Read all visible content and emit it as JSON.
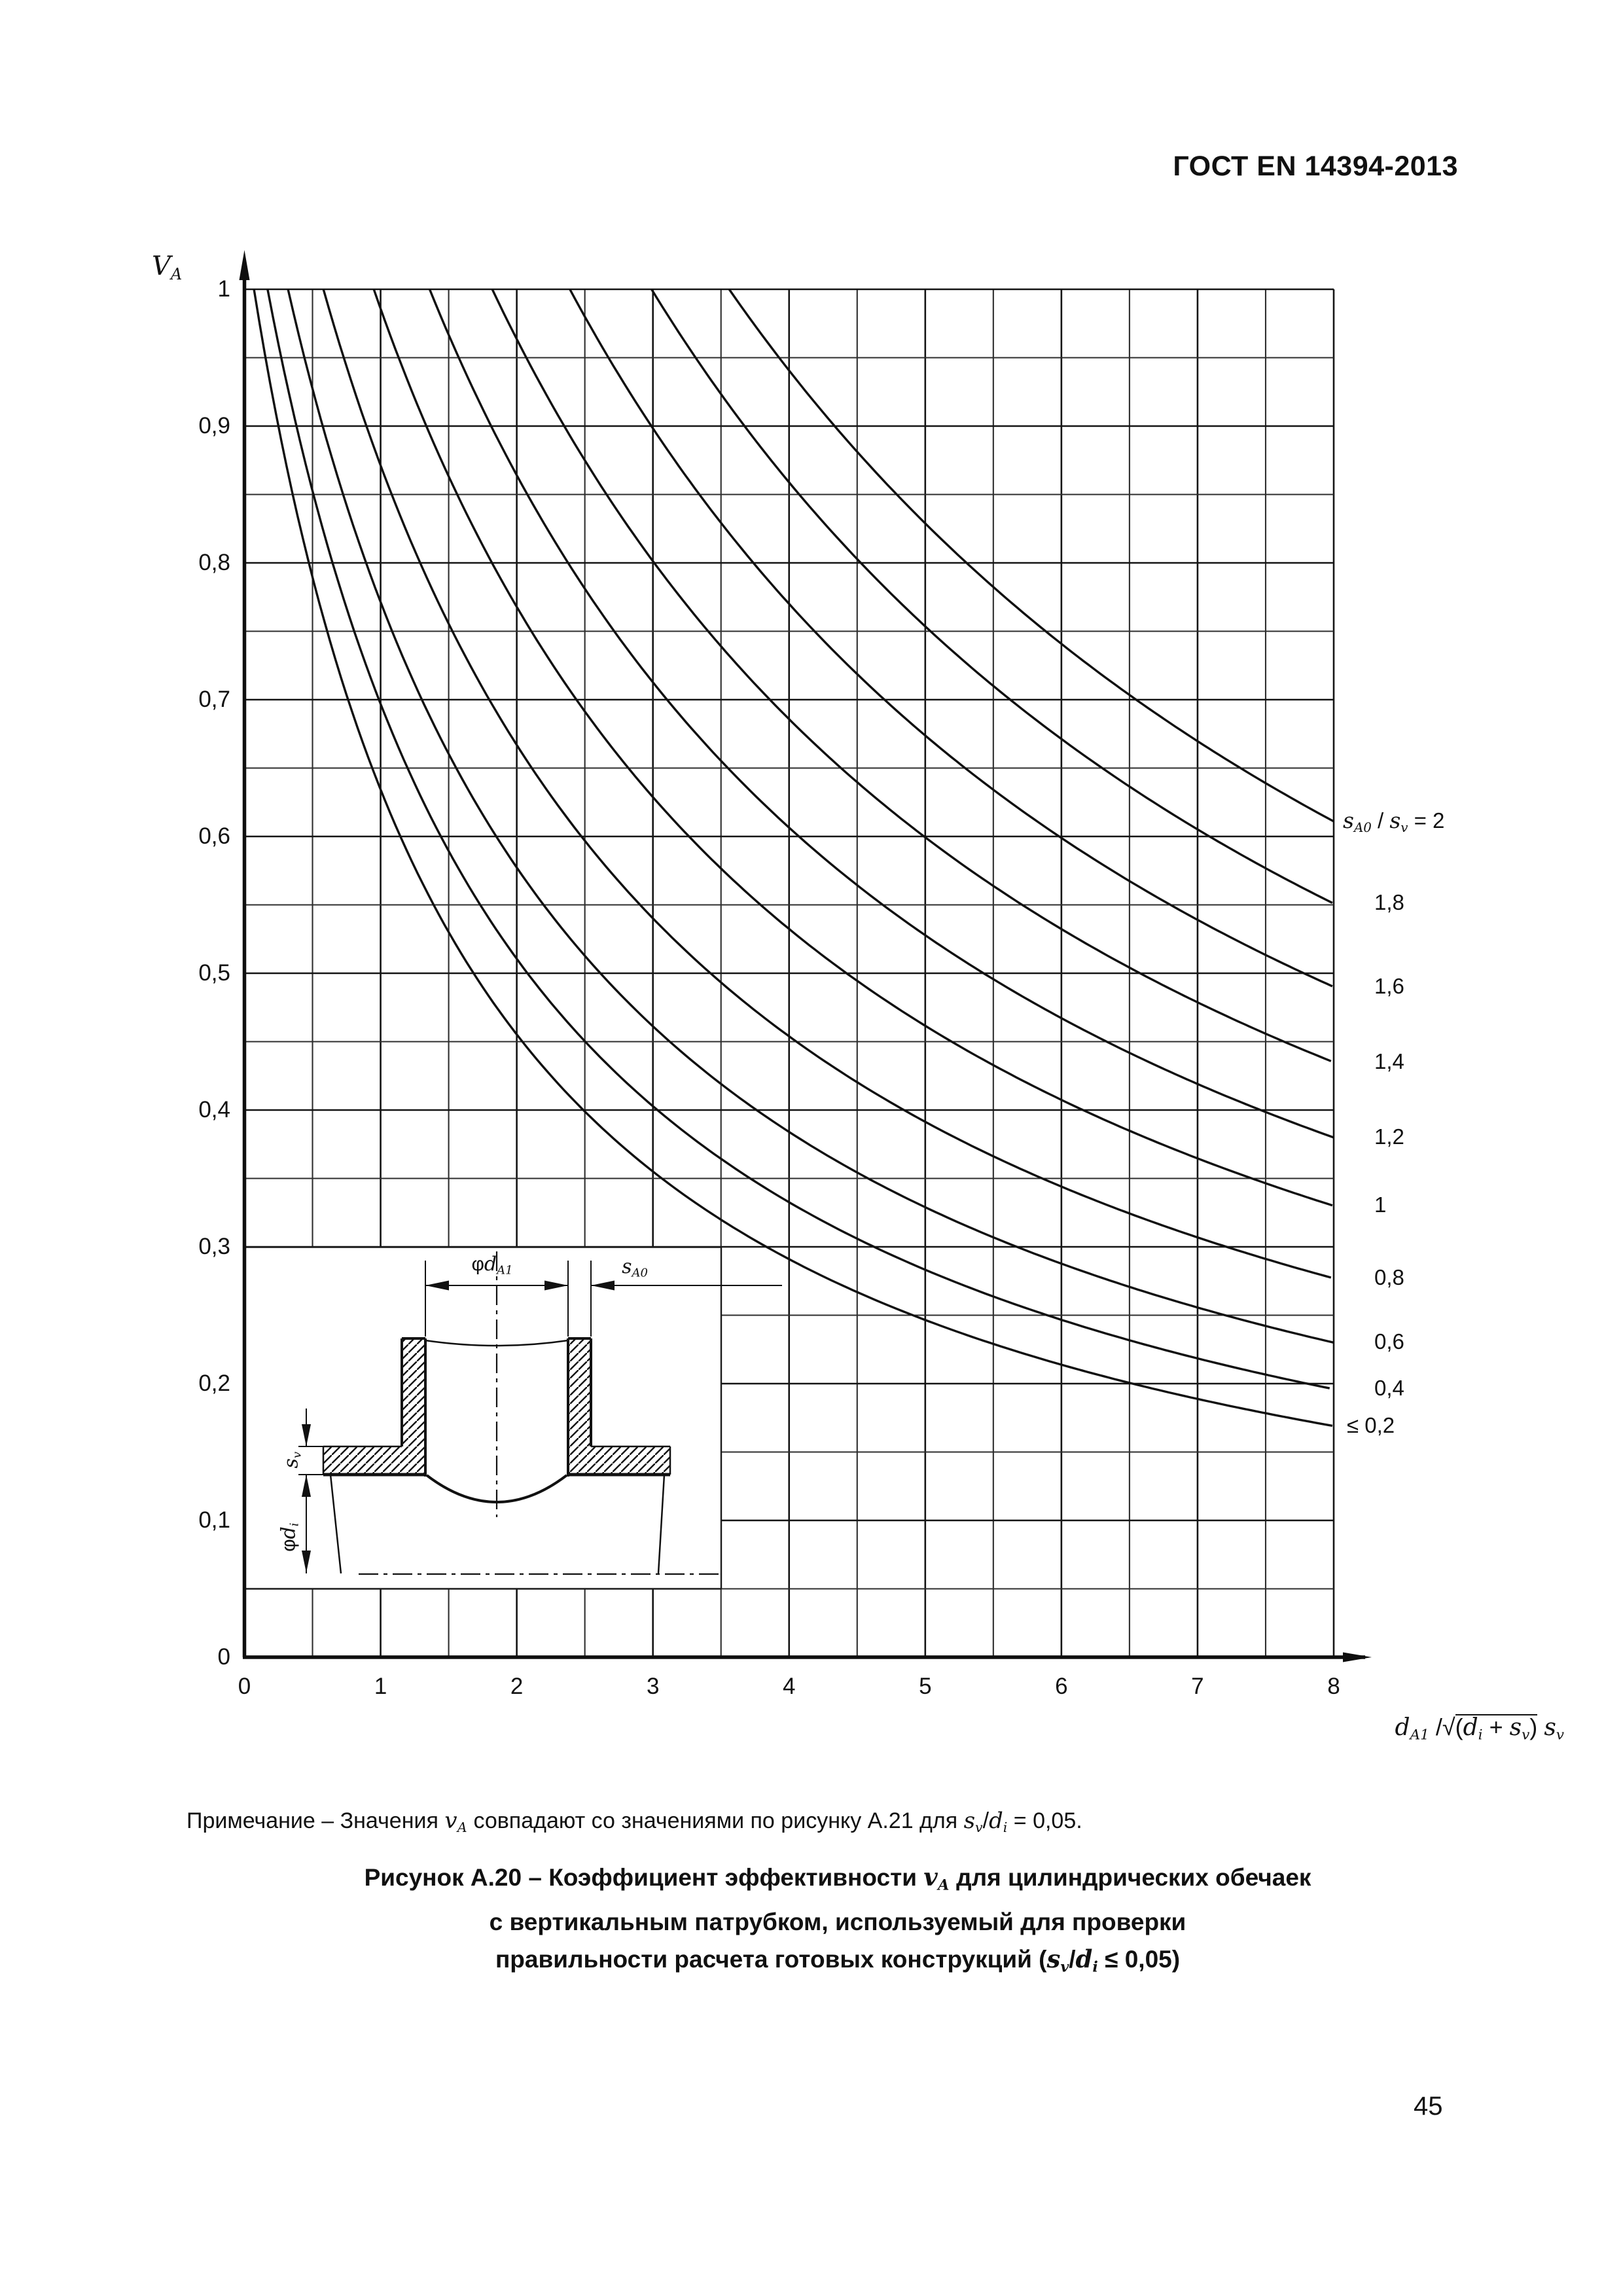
{
  "page": {
    "header": "ГОСТ EN 14394-2013",
    "page_number": "45"
  },
  "note": "Примечание – Значения *{v}_{А} совпадают со значениями по рисунку А.21 для *{s}_{v}/*{d}_{i} = 0,05.",
  "caption": {
    "line1": "Рисунок А.20 – Коэффициент эффективности *{v}_{А} для цилиндрических обечаек",
    "line2": "с вертикальным патрубком, используемый для проверки",
    "line3": "правильности расчета готовых конструкций (*{s}_{v}/*{d}_{i} ≤ 0,05)"
  },
  "chart_data": {
    "type": "line",
    "ylabel": "*{V}_{A}",
    "xlabel_parts": {
      "pre": "*{d}_{A1} /",
      "radical": "√",
      "under_radical": "(*{d}_{i} + *{s}_{v})",
      "post": " *{s}_{v}"
    },
    "xlim": [
      0,
      8
    ],
    "ylim": [
      0,
      1
    ],
    "x_ticks": [
      "0",
      "1",
      "2",
      "3",
      "4",
      "5",
      "6",
      "7",
      "8"
    ],
    "y_ticks": [
      "1",
      "0,9",
      "0,8",
      "0,7",
      "0,6",
      "0,5",
      "0,4",
      "0,3",
      "0,2",
      "0,1",
      "0"
    ],
    "grid": {
      "x_minor_step": 0.5,
      "y_minor_step": 0.05,
      "on": true
    },
    "legend_position": "right of curve ends",
    "x_sample": [
      1,
      2,
      3,
      4,
      5,
      6,
      7,
      8
    ],
    "series": [
      {
        "label": "*{s}_{A0} / *{s}_{v} = 2",
        "ratio": 2.0,
        "x_start": 3.56,
        "k": 0.1434,
        "va": [
          1,
          1,
          1,
          0.941,
          0.829,
          0.741,
          0.67,
          0.611
        ]
      },
      {
        "label": "1,8",
        "ratio": 1.8,
        "x_start": 2.99,
        "k": 0.1627,
        "va": [
          1,
          1,
          1,
          0.859,
          0.754,
          0.672,
          0.606,
          0.551
        ]
      },
      {
        "label": "1,6",
        "ratio": 1.6,
        "x_start": 2.39,
        "k": 0.1855,
        "va": [
          1,
          1,
          0.898,
          0.77,
          0.674,
          0.599,
          0.539,
          0.49
        ]
      },
      {
        "label": "1,4",
        "ratio": 1.4,
        "x_start": 1.82,
        "k": 0.2102,
        "va": [
          1,
          0.964,
          0.801,
          0.686,
          0.6,
          0.532,
          0.478,
          0.435
        ]
      },
      {
        "label": "1,2",
        "ratio": 1.2,
        "x_start": 1.36,
        "k": 0.2458,
        "va": [
          1,
          0.864,
          0.712,
          0.606,
          0.528,
          0.467,
          0.419,
          0.38
        ]
      },
      {
        "label": "1",
        "ratio": 1.0,
        "x_start": 0.95,
        "k": 0.288,
        "va": [
          0.986,
          0.768,
          0.629,
          0.532,
          0.461,
          0.407,
          0.364,
          0.33
        ]
      },
      {
        "label": "0,8",
        "ratio": 0.8,
        "x_start": 0.58,
        "k": 0.3518,
        "va": [
          0.871,
          0.667,
          0.54,
          0.454,
          0.391,
          0.344,
          0.307,
          0.277
        ]
      },
      {
        "label": "0,6",
        "ratio": 0.6,
        "x_start": 0.32,
        "k": 0.4359,
        "va": [
          0.771,
          0.577,
          0.461,
          0.384,
          0.329,
          0.288,
          0.256,
          0.23
        ]
      },
      {
        "label": "0,4",
        "ratio": 0.4,
        "x_start": 0.17,
        "k": 0.5239,
        "va": [
          0.697,
          0.51,
          0.403,
          0.333,
          0.283,
          0.247,
          0.218,
          0.196
        ]
      },
      {
        "label": "≤ 0,2",
        "ratio": 0.2,
        "x_start": 0.07,
        "k": 0.62,
        "va": [
          0.634,
          0.455,
          0.355,
          0.291,
          0.246,
          0.214,
          0.189,
          0.169
        ]
      }
    ]
  },
  "inset": {
    "labels": {
      "d_a1": "φ*{d}_{A1}",
      "s_a0": "*{s}_{A0}",
      "s_v": "*{s}_{v}",
      "d_i": "φ*{d}_{i}"
    }
  }
}
